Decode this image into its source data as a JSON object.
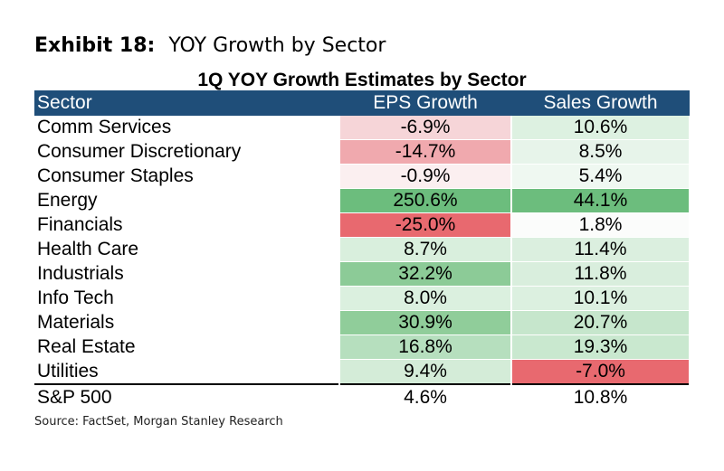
{
  "header": {
    "exhibit_number": "Exhibit 18:",
    "exhibit_title": "YOY Growth by Sector"
  },
  "chart_data": {
    "type": "table",
    "title": "1Q YOY Growth Estimates by Sector",
    "columns": [
      "Sector",
      "EPS Growth",
      "Sales Growth"
    ],
    "rows": [
      {
        "sector": "Comm Services",
        "eps": "-6.9%",
        "sales": "10.6%",
        "eps_value": -6.9,
        "sales_value": 10.6
      },
      {
        "sector": "Consumer Discretionary",
        "eps": "-14.7%",
        "sales": "8.5%",
        "eps_value": -14.7,
        "sales_value": 8.5
      },
      {
        "sector": "Consumer Staples",
        "eps": "-0.9%",
        "sales": "5.4%",
        "eps_value": -0.9,
        "sales_value": 5.4
      },
      {
        "sector": "Energy",
        "eps": "250.6%",
        "sales": "44.1%",
        "eps_value": 250.6,
        "sales_value": 44.1
      },
      {
        "sector": "Financials",
        "eps": "-25.0%",
        "sales": "1.8%",
        "eps_value": -25.0,
        "sales_value": 1.8
      },
      {
        "sector": "Health Care",
        "eps": "8.7%",
        "sales": "11.4%",
        "eps_value": 8.7,
        "sales_value": 11.4
      },
      {
        "sector": "Industrials",
        "eps": "32.2%",
        "sales": "11.8%",
        "eps_value": 32.2,
        "sales_value": 11.8
      },
      {
        "sector": "Info Tech",
        "eps": "8.0%",
        "sales": "10.1%",
        "eps_value": 8.0,
        "sales_value": 10.1
      },
      {
        "sector": "Materials",
        "eps": "30.9%",
        "sales": "20.7%",
        "eps_value": 30.9,
        "sales_value": 20.7
      },
      {
        "sector": "Real Estate",
        "eps": "16.8%",
        "sales": "19.3%",
        "eps_value": 16.8,
        "sales_value": 19.3
      },
      {
        "sector": "Utilities",
        "eps": "9.4%",
        "sales": "-7.0%",
        "eps_value": 9.4,
        "sales_value": -7.0
      }
    ],
    "total": {
      "sector": "S&P 500",
      "eps": "4.6%",
      "sales": "10.8%"
    },
    "cell_colors": {
      "eps": [
        "#f6d5d8",
        "#f0a9ae",
        "#fbeff0",
        "#6cbd7d",
        "#e8696f",
        "#d9efdd",
        "#8ccb97",
        "#dbf0df",
        "#90cd9a",
        "#b6dfbe",
        "#d4ecd8"
      ],
      "sales": [
        "#ddf1e1",
        "#e7f4ea",
        "#eff8f1",
        "#6cbd7d",
        "#fbfcfb",
        "#dbefdf",
        "#d9eedd",
        "#dcf0e0",
        "#c6e6cc",
        "#c9e8cf",
        "#e8696f"
      ]
    }
  },
  "colors": {
    "header_bg": "#1f4e79",
    "header_text": "#ffffff"
  },
  "source": "Source: FactSet, Morgan Stanley Research"
}
